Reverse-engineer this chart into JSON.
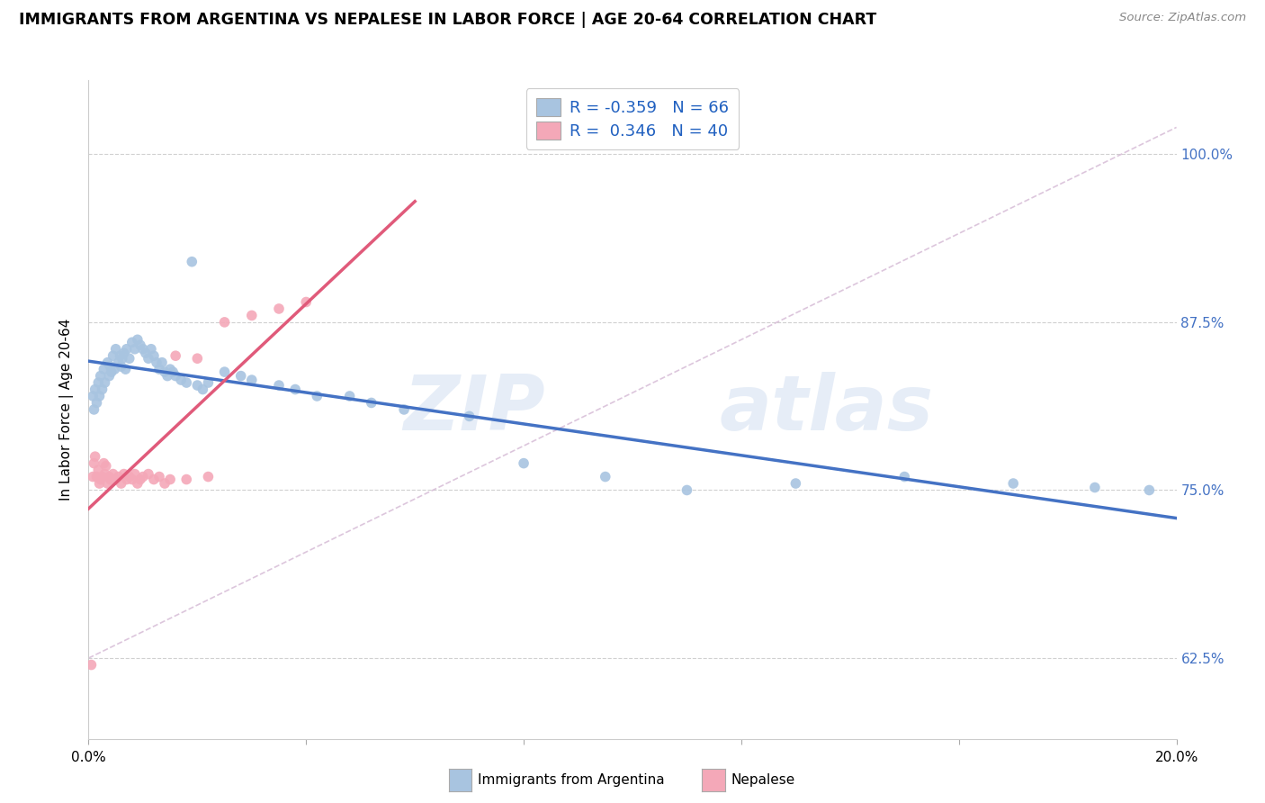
{
  "title": "IMMIGRANTS FROM ARGENTINA VS NEPALESE IN LABOR FORCE | AGE 20-64 CORRELATION CHART",
  "source": "Source: ZipAtlas.com",
  "ylabel_label": "In Labor Force | Age 20-64",
  "y_ticks": [
    0.625,
    0.75,
    0.875,
    1.0
  ],
  "y_tick_labels": [
    "62.5%",
    "75.0%",
    "87.5%",
    "100.0%"
  ],
  "xlim": [
    0.0,
    0.2
  ],
  "ylim": [
    0.565,
    1.055
  ],
  "argentina_R": -0.359,
  "argentina_N": 66,
  "nepalese_R": 0.346,
  "nepalese_N": 40,
  "argentina_color": "#a8c4e0",
  "nepalese_color": "#f4a8b8",
  "argentina_line_color": "#4472c4",
  "nepalese_line_color": "#e05a7a",
  "ref_line_color": "#c8b8d8",
  "watermark_zip": "ZIP",
  "watermark_atlas": "atlas",
  "legend_color": "#2060c0",
  "argentina_x": [
    0.0008,
    0.001,
    0.0012,
    0.0015,
    0.0018,
    0.002,
    0.0022,
    0.0025,
    0.0028,
    0.003,
    0.0035,
    0.0038,
    0.004,
    0.0042,
    0.0045,
    0.0048,
    0.005,
    0.0055,
    0.0058,
    0.006,
    0.0062,
    0.0065,
    0.0068,
    0.007,
    0.0075,
    0.008,
    0.0085,
    0.009,
    0.0095,
    0.01,
    0.0105,
    0.011,
    0.0115,
    0.012,
    0.0125,
    0.013,
    0.0135,
    0.014,
    0.0145,
    0.015,
    0.0155,
    0.016,
    0.017,
    0.018,
    0.019,
    0.02,
    0.021,
    0.022,
    0.025,
    0.028,
    0.03,
    0.035,
    0.038,
    0.042,
    0.048,
    0.052,
    0.058,
    0.07,
    0.08,
    0.095,
    0.11,
    0.13,
    0.15,
    0.17,
    0.185,
    0.195
  ],
  "argentina_y": [
    0.82,
    0.81,
    0.825,
    0.815,
    0.83,
    0.82,
    0.835,
    0.825,
    0.84,
    0.83,
    0.845,
    0.835,
    0.842,
    0.838,
    0.85,
    0.84,
    0.855,
    0.845,
    0.85,
    0.842,
    0.848,
    0.852,
    0.84,
    0.855,
    0.848,
    0.86,
    0.855,
    0.862,
    0.858,
    0.855,
    0.852,
    0.848,
    0.855,
    0.85,
    0.845,
    0.84,
    0.845,
    0.838,
    0.835,
    0.84,
    0.838,
    0.835,
    0.832,
    0.83,
    0.92,
    0.828,
    0.825,
    0.83,
    0.838,
    0.835,
    0.832,
    0.828,
    0.825,
    0.82,
    0.82,
    0.815,
    0.81,
    0.805,
    0.77,
    0.76,
    0.75,
    0.755,
    0.76,
    0.755,
    0.752,
    0.75
  ],
  "nepalese_x": [
    0.0005,
    0.0008,
    0.001,
    0.0012,
    0.0015,
    0.0018,
    0.002,
    0.0022,
    0.0025,
    0.0028,
    0.003,
    0.0032,
    0.0035,
    0.0038,
    0.004,
    0.0045,
    0.005,
    0.0055,
    0.006,
    0.0065,
    0.007,
    0.0075,
    0.008,
    0.0085,
    0.009,
    0.0095,
    0.01,
    0.011,
    0.012,
    0.013,
    0.014,
    0.015,
    0.016,
    0.018,
    0.02,
    0.022,
    0.025,
    0.03,
    0.035,
    0.04
  ],
  "nepalese_y": [
    0.62,
    0.76,
    0.77,
    0.775,
    0.76,
    0.765,
    0.755,
    0.758,
    0.76,
    0.77,
    0.762,
    0.768,
    0.755,
    0.76,
    0.758,
    0.762,
    0.758,
    0.76,
    0.755,
    0.762,
    0.758,
    0.76,
    0.758,
    0.762,
    0.755,
    0.758,
    0.76,
    0.762,
    0.758,
    0.76,
    0.755,
    0.758,
    0.85,
    0.758,
    0.848,
    0.76,
    0.875,
    0.88,
    0.885,
    0.89
  ]
}
